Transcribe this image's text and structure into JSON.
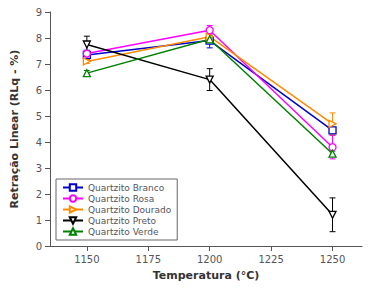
{
  "chart_data": {
    "type": "line",
    "xlabel": "Temperatura (°C)",
    "ylabel": "Retração Linear (RLq - %)",
    "x": [
      1150,
      1200,
      1250
    ],
    "xlim": [
      1135,
      1262
    ],
    "xticks": [
      1150,
      1175,
      1200,
      1225,
      1250
    ],
    "ylim": [
      0,
      9
    ],
    "yticks": [
      0,
      1,
      2,
      3,
      4,
      5,
      6,
      7,
      8,
      9
    ],
    "grid": false,
    "legend": "lower left",
    "series": [
      {
        "name": "Quartzito Branco",
        "color": "#0000cc",
        "marker": "square",
        "values": [
          7.35,
          7.9,
          4.45
        ],
        "yerr": [
          0.18,
          0.28,
          0.1
        ]
      },
      {
        "name": "Quartzito Rosa",
        "color": "#ff00ff",
        "marker": "circle",
        "values": [
          7.4,
          8.3,
          3.8
        ],
        "yerr": [
          0.1,
          0.18,
          0.45
        ]
      },
      {
        "name": "Quartzito Dourado",
        "color": "#ff8c00",
        "marker": "triangle-right",
        "values": [
          7.1,
          8.05,
          4.7
        ],
        "yerr": [
          0.08,
          0.12,
          0.42
        ]
      },
      {
        "name": "Quartzito Preto",
        "color": "#000000",
        "marker": "triangle-down",
        "values": [
          7.75,
          6.4,
          1.2
        ],
        "yerr": [
          0.32,
          0.42,
          0.65
        ]
      },
      {
        "name": "Quartzito Verde",
        "color": "#008000",
        "marker": "triangle-up",
        "values": [
          6.65,
          7.95,
          3.55
        ],
        "yerr": [
          0.1,
          0.15,
          0.1
        ]
      }
    ]
  }
}
